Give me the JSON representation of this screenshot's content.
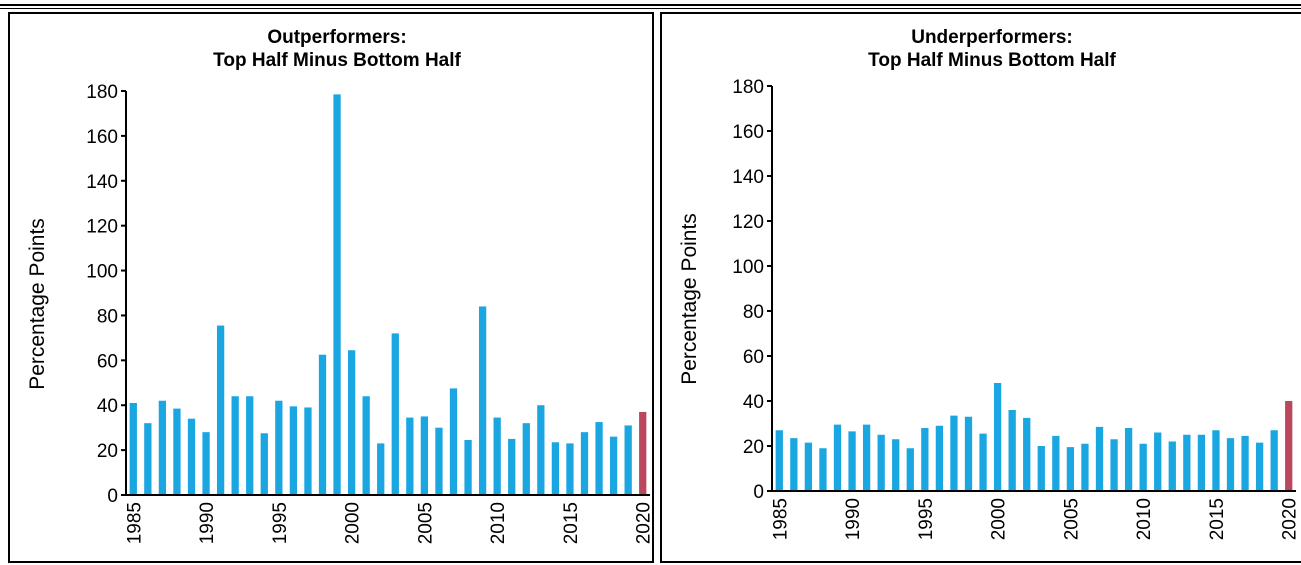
{
  "colors": {
    "bar": "#1aa6e0",
    "highlight": "#b9485f",
    "axis": "#000000"
  },
  "chart_data": [
    {
      "type": "bar",
      "title_line1": "Outperformers:",
      "title_line2": "Top Half Minus Bottom Half",
      "ylabel": "Percentage Points",
      "xlabel": "",
      "ylim": [
        0,
        180
      ],
      "yticks": [
        0,
        20,
        40,
        60,
        80,
        100,
        120,
        140,
        160,
        180
      ],
      "x": [
        1985,
        1986,
        1987,
        1988,
        1989,
        1990,
        1991,
        1992,
        1993,
        1994,
        1995,
        1996,
        1997,
        1998,
        1999,
        2000,
        2001,
        2002,
        2003,
        2004,
        2005,
        2006,
        2007,
        2008,
        2009,
        2010,
        2011,
        2012,
        2013,
        2014,
        2015,
        2016,
        2017,
        2018,
        2019,
        2020
      ],
      "values": [
        41,
        32,
        42,
        38.5,
        34,
        28,
        75.5,
        44,
        44,
        27.5,
        42,
        39.5,
        39,
        62.5,
        178.5,
        64.5,
        44,
        23,
        72,
        34.5,
        35,
        30,
        47.5,
        24.5,
        84,
        34.5,
        25,
        32,
        40,
        23.5,
        23,
        28,
        32.5,
        26,
        31,
        37
      ],
      "highlight_index": 35,
      "xtick_labels": [
        "1985",
        "1990",
        "1995",
        "2000",
        "2005",
        "2010",
        "2015",
        "2020"
      ],
      "xtick_values": [
        1985,
        1990,
        1995,
        2000,
        2005,
        2010,
        2015,
        2020
      ],
      "grid": false,
      "legend": "none"
    },
    {
      "type": "bar",
      "title_line1": "Underperformers:",
      "title_line2": "Top Half Minus Bottom Half",
      "ylabel": "Percentage Points",
      "xlabel": "",
      "ylim": [
        0,
        180
      ],
      "yticks": [
        0,
        20,
        40,
        60,
        80,
        100,
        120,
        140,
        160,
        180
      ],
      "x": [
        1985,
        1986,
        1987,
        1988,
        1989,
        1990,
        1991,
        1992,
        1993,
        1994,
        1995,
        1996,
        1997,
        1998,
        1999,
        2000,
        2001,
        2002,
        2003,
        2004,
        2005,
        2006,
        2007,
        2008,
        2009,
        2010,
        2011,
        2012,
        2013,
        2014,
        2015,
        2016,
        2017,
        2018,
        2019,
        2020
      ],
      "values": [
        27,
        23.5,
        21.5,
        19,
        29.5,
        26.5,
        29.5,
        25,
        23,
        19,
        28,
        29,
        33.5,
        33,
        25.5,
        48,
        36,
        32.5,
        20,
        24.5,
        19.5,
        21,
        28.5,
        23,
        28,
        21,
        26,
        22,
        25,
        25,
        27,
        23.5,
        24.5,
        21.5,
        27,
        40
      ],
      "highlight_index": 35,
      "xtick_labels": [
        "1985",
        "1990",
        "1995",
        "2000",
        "2005",
        "2010",
        "2015",
        "2020"
      ],
      "xtick_values": [
        1985,
        1990,
        1995,
        2000,
        2005,
        2010,
        2015,
        2020
      ],
      "grid": false,
      "legend": "none"
    }
  ]
}
